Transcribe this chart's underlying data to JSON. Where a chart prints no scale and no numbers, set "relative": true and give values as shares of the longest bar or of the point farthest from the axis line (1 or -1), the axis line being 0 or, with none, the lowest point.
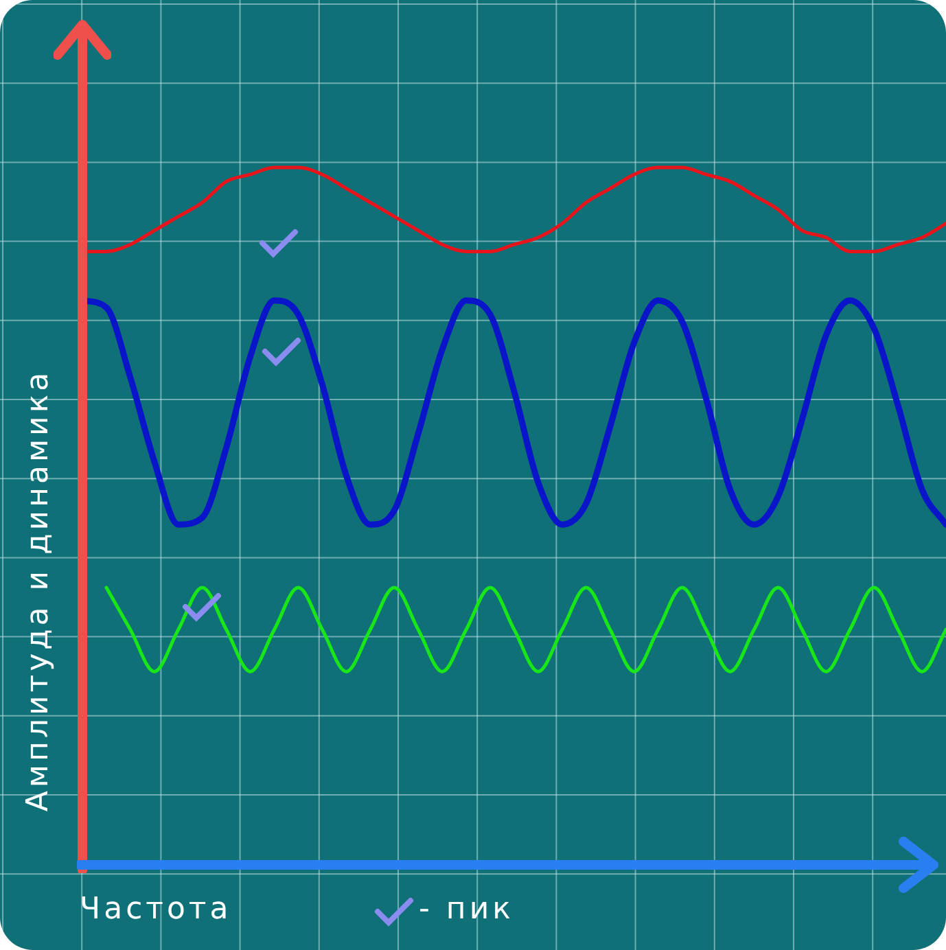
{
  "chart_data": {
    "type": "line",
    "relative": true,
    "grid": true,
    "legend": false,
    "marker": "none",
    "line_style": "solid",
    "xlabel": "Частота",
    "ylabel": "Амплитуда и динамика",
    "annotations": [
      "- пик"
    ],
    "categories": [
      null,
      null,
      null,
      null,
      null,
      null,
      null,
      null,
      null,
      null,
      null,
      null,
      null,
      null,
      null,
      null,
      null,
      null,
      null,
      null,
      null,
      null,
      null,
      null,
      null,
      null,
      null,
      null,
      null,
      null,
      null,
      null,
      null,
      null,
      null,
      null,
      null
    ],
    "series": [
      {
        "color": "#e8141c",
        "values": [
          0.88,
          0.88,
          0.89,
          0.91,
          0.93,
          0.95,
          0.98,
          0.99,
          1.0,
          1.0,
          0.99,
          0.97,
          0.95,
          0.93,
          0.91,
          0.89,
          0.88,
          0.88,
          0.89,
          0.9,
          0.92,
          0.95,
          0.97,
          0.99,
          1.0,
          1.0,
          0.99,
          0.98,
          0.96,
          0.94,
          0.91,
          0.9,
          0.88,
          0.88,
          0.89,
          0.9,
          0.92
        ]
      },
      {
        "color": "#0a14c8",
        "values": [
          0.81,
          0.8,
          0.7,
          0.58,
          0.49,
          0.5,
          0.6,
          0.73,
          0.81,
          0.79,
          0.69,
          0.56,
          0.49,
          0.51,
          0.62,
          0.74,
          0.81,
          0.79,
          0.68,
          0.55,
          0.49,
          0.52,
          0.63,
          0.75,
          0.81,
          0.78,
          0.67,
          0.54,
          0.49,
          0.53,
          0.64,
          0.76,
          0.81,
          0.77,
          0.66,
          0.54,
          0.49
        ]
      },
      {
        "color": "#19e619",
        "values": [
          null,
          0.4,
          0.34,
          0.28,
          0.34,
          0.4,
          0.34,
          0.28,
          0.34,
          0.4,
          0.34,
          0.28,
          0.34,
          0.4,
          0.34,
          0.28,
          0.34,
          0.4,
          0.34,
          0.28,
          0.34,
          0.4,
          0.34,
          0.28,
          0.34,
          0.4,
          0.34,
          0.28,
          0.34,
          0.4,
          0.34,
          0.28,
          0.34,
          0.4,
          0.34,
          0.28,
          0.34
        ]
      }
    ]
  }
}
